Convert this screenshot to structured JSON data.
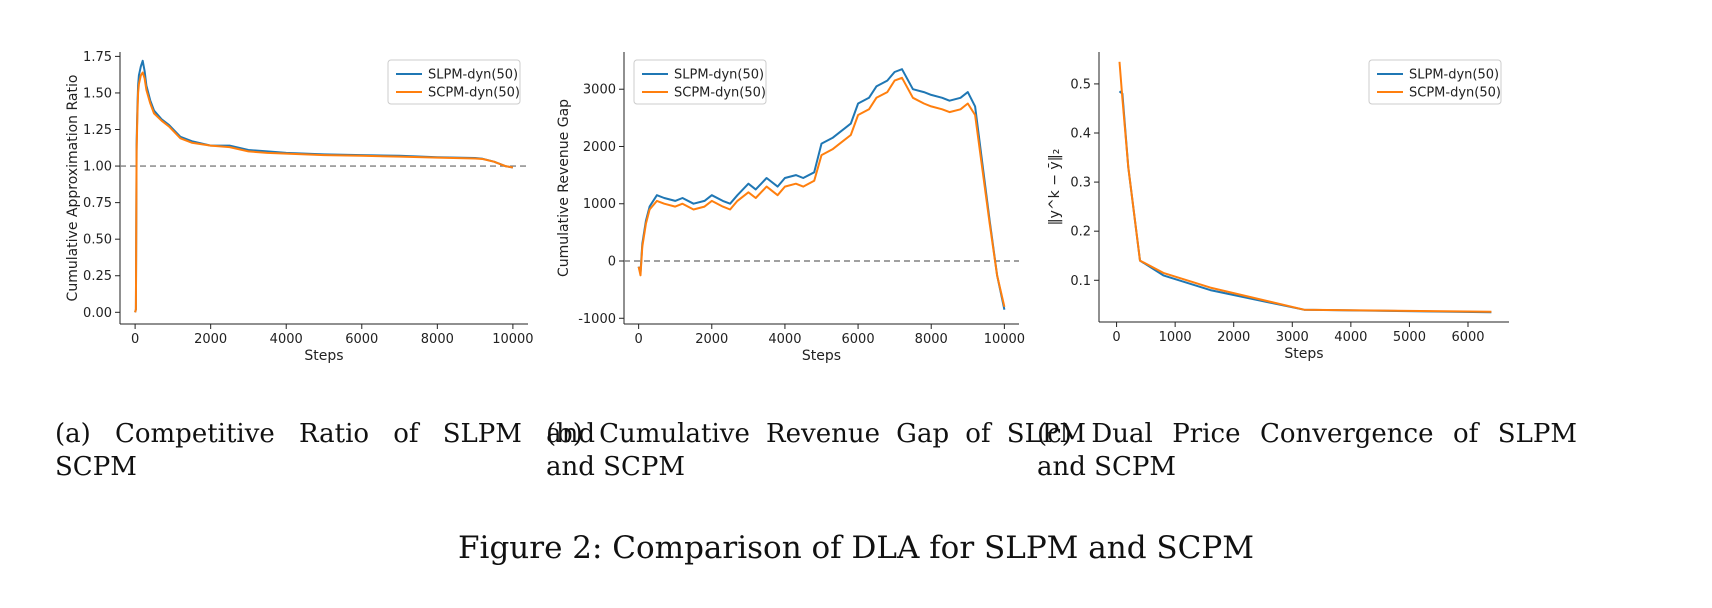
{
  "figure_caption": "Figure 2: Comparison of DLA for SLPM and SCPM",
  "panels": [
    {
      "caption": "(a) Competitive Ratio of SLPM and SCPM",
      "xlabel": "Steps",
      "ylabel": "Cumulative Approximation Ratio",
      "legend": [
        "SLPM-dyn(50)",
        "SCPM-dyn(50)"
      ]
    },
    {
      "caption": "(b) Cumulative Revenue Gap of SLPM and SCPM",
      "xlabel": "Steps",
      "ylabel": "Cumulative Revenue Gap",
      "legend": [
        "SLPM-dyn(50)",
        "SCPM-dyn(50)"
      ]
    },
    {
      "caption": "(c) Dual Price Convergence of SLPM and SCPM",
      "xlabel": "Steps",
      "ylabel": "‖y^k − ȳ‖₂",
      "legend": [
        "SLPM-dyn(50)",
        "SCPM-dyn(50)"
      ]
    }
  ],
  "colors": {
    "slpm": "#1f77b4",
    "scpm": "#ff7f0e",
    "ref_line": "#808080"
  },
  "chart_data": [
    {
      "type": "line",
      "xlabel": "Steps",
      "ylabel": "Cumulative Approximation Ratio",
      "xlim": [
        -400,
        10400
      ],
      "ylim": [
        -0.08,
        1.78
      ],
      "xticks": [
        0,
        2000,
        4000,
        6000,
        8000,
        10000
      ],
      "yticks": [
        0.0,
        0.25,
        0.5,
        0.75,
        1.0,
        1.25,
        1.5,
        1.75
      ],
      "ytick_labels": [
        "0.00",
        "0.25",
        "0.50",
        "0.75",
        "1.00",
        "1.25",
        "1.50",
        "1.75"
      ],
      "reference_line": 1.0,
      "legend_position": "top-right",
      "series": [
        {
          "name": "SLPM-dyn(50)",
          "x": [
            0,
            20,
            40,
            60,
            80,
            100,
            150,
            200,
            250,
            300,
            400,
            500,
            700,
            900,
            1200,
            1500,
            2000,
            2500,
            3000,
            3500,
            4000,
            5000,
            6000,
            7000,
            8000,
            9000,
            9200,
            9500,
            9800,
            10000
          ],
          "y": [
            0.0,
            0.02,
            1.15,
            1.4,
            1.55,
            1.62,
            1.68,
            1.72,
            1.65,
            1.55,
            1.45,
            1.38,
            1.32,
            1.28,
            1.2,
            1.17,
            1.14,
            1.14,
            1.11,
            1.1,
            1.09,
            1.08,
            1.075,
            1.07,
            1.06,
            1.055,
            1.05,
            1.03,
            1.0,
            0.99
          ]
        },
        {
          "name": "SCPM-dyn(50)",
          "x": [
            0,
            20,
            40,
            60,
            80,
            100,
            150,
            200,
            250,
            300,
            400,
            500,
            700,
            900,
            1200,
            1500,
            2000,
            2500,
            3000,
            3500,
            4000,
            5000,
            6000,
            7000,
            8000,
            9000,
            9200,
            9500,
            9800,
            10000
          ],
          "y": [
            0.0,
            0.02,
            1.1,
            1.35,
            1.5,
            1.56,
            1.62,
            1.64,
            1.6,
            1.52,
            1.43,
            1.36,
            1.31,
            1.27,
            1.19,
            1.16,
            1.14,
            1.13,
            1.1,
            1.09,
            1.085,
            1.075,
            1.07,
            1.065,
            1.058,
            1.052,
            1.048,
            1.03,
            1.0,
            0.99
          ]
        }
      ]
    },
    {
      "type": "line",
      "xlabel": "Steps",
      "ylabel": "Cumulative Revenue Gap",
      "xlim": [
        -400,
        10400
      ],
      "ylim": [
        -1100,
        3650
      ],
      "xticks": [
        0,
        2000,
        4000,
        6000,
        8000,
        10000
      ],
      "yticks": [
        -1000,
        0,
        1000,
        2000,
        3000
      ],
      "reference_line": 0,
      "legend_position": "top-left",
      "series": [
        {
          "name": "SLPM-dyn(50)",
          "x": [
            0,
            50,
            100,
            200,
            300,
            500,
            700,
            1000,
            1200,
            1500,
            1800,
            2000,
            2300,
            2500,
            2700,
            3000,
            3200,
            3500,
            3800,
            4000,
            4300,
            4500,
            4800,
            5000,
            5300,
            5500,
            5800,
            6000,
            6300,
            6500,
            6800,
            7000,
            7200,
            7500,
            7800,
            8000,
            8300,
            8500,
            8800,
            9000,
            9200,
            9400,
            9600,
            9800,
            10000
          ],
          "y": [
            -100,
            -200,
            300,
            700,
            950,
            1150,
            1100,
            1050,
            1100,
            1000,
            1050,
            1150,
            1050,
            1000,
            1150,
            1350,
            1250,
            1450,
            1300,
            1450,
            1500,
            1450,
            1550,
            2050,
            2150,
            2250,
            2400,
            2750,
            2850,
            3050,
            3150,
            3300,
            3350,
            3000,
            2950,
            2900,
            2850,
            2800,
            2850,
            2950,
            2700,
            1700,
            700,
            -250,
            -850
          ]
        },
        {
          "name": "SCPM-dyn(50)",
          "x": [
            0,
            50,
            100,
            200,
            300,
            500,
            700,
            1000,
            1200,
            1500,
            1800,
            2000,
            2300,
            2500,
            2700,
            3000,
            3200,
            3500,
            3800,
            4000,
            4300,
            4500,
            4800,
            5000,
            5300,
            5500,
            5800,
            6000,
            6300,
            6500,
            6800,
            7000,
            7200,
            7500,
            7800,
            8000,
            8300,
            8500,
            8800,
            9000,
            9200,
            9400,
            9600,
            9800,
            10000
          ],
          "y": [
            -100,
            -250,
            250,
            650,
            900,
            1050,
            1000,
            950,
            1000,
            900,
            950,
            1050,
            950,
            900,
            1050,
            1200,
            1100,
            1300,
            1150,
            1300,
            1350,
            1300,
            1400,
            1850,
            1950,
            2050,
            2200,
            2550,
            2650,
            2850,
            2950,
            3150,
            3200,
            2850,
            2750,
            2700,
            2650,
            2600,
            2650,
            2750,
            2550,
            1600,
            650,
            -250,
            -800
          ]
        }
      ]
    },
    {
      "type": "line",
      "xlabel": "Steps",
      "ylabel": "‖y^k − ȳ‖₂",
      "xlim": [
        -300,
        6700
      ],
      "ylim": [
        0.015,
        0.565
      ],
      "xticks": [
        0,
        1000,
        2000,
        3000,
        4000,
        5000,
        6000
      ],
      "yticks": [
        0.1,
        0.2,
        0.3,
        0.4,
        0.5
      ],
      "legend_position": "top-right",
      "series": [
        {
          "name": "SLPM-dyn(50)",
          "x": [
            50,
            100,
            200,
            400,
            800,
            1600,
            3200,
            6400
          ],
          "y": [
            0.485,
            0.48,
            0.33,
            0.14,
            0.11,
            0.08,
            0.04,
            0.035
          ]
        },
        {
          "name": "SCPM-dyn(50)",
          "x": [
            50,
            100,
            200,
            400,
            800,
            1600,
            3200,
            6400
          ],
          "y": [
            0.545,
            0.47,
            0.33,
            0.14,
            0.115,
            0.085,
            0.04,
            0.036
          ]
        }
      ]
    }
  ]
}
